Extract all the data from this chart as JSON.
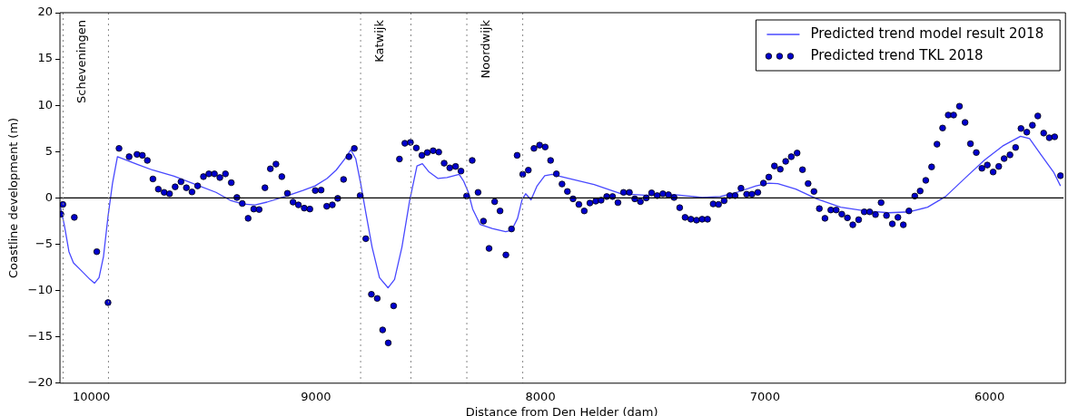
{
  "chart_data": {
    "type": "line",
    "xlabel": "Distance from Den Helder (dam)",
    "ylabel": "Coastline development (m)",
    "xlim": [
      10140,
      5670
    ],
    "ylim": [
      -20,
      20
    ],
    "xticks": [
      10000,
      9000,
      8000,
      7000,
      6000
    ],
    "yticks": [
      -20,
      -15,
      -10,
      -5,
      0,
      5,
      10,
      15,
      20
    ],
    "grid": false,
    "legend": "top right",
    "series": [
      {
        "name": "Predicted trend model result 2018",
        "color": "#4848ff",
        "marker": "none",
        "line_style": "solid",
        "x": [
          10140,
          10120,
          10100,
          10080,
          10047,
          10006,
          9986,
          9966,
          9946,
          9926,
          9906,
          9884,
          9793,
          9726,
          9632,
          9525,
          9445,
          9378,
          9325,
          9271,
          9218,
          9138,
          9058,
          9004,
          8951,
          8910,
          8870,
          8845,
          8823,
          8801,
          8777,
          8750,
          8717,
          8679,
          8650,
          8617,
          8583,
          8550,
          8526,
          8496,
          8456,
          8416,
          8362,
          8342,
          8322,
          8302,
          8269,
          8215,
          8155,
          8129,
          8102,
          8082,
          8066,
          8042,
          8015,
          7981,
          7948,
          7908,
          7761,
          7640,
          7533,
          7400,
          7280,
          7200,
          7120,
          7040,
          6983,
          6943,
          6863,
          6770,
          6663,
          6556,
          6449,
          6356,
          6276,
          6196,
          6102,
          6022,
          5942,
          5862,
          5822,
          5769,
          5715,
          5684
        ],
        "values": [
          -0.7,
          -3.0,
          -5.8,
          -7.0,
          -7.8,
          -8.8,
          -9.2,
          -8.6,
          -6.3,
          -2.0,
          1.6,
          4.45,
          3.6,
          3.0,
          2.35,
          1.35,
          0.6,
          -0.3,
          -0.65,
          -0.75,
          -0.45,
          0.15,
          0.8,
          1.3,
          2.1,
          3.0,
          4.25,
          5.2,
          4.25,
          1.6,
          -1.7,
          -5.3,
          -8.6,
          -9.7,
          -8.8,
          -5.3,
          -0.35,
          3.45,
          3.7,
          2.8,
          2.1,
          2.2,
          2.55,
          1.8,
          0.65,
          -1.2,
          -2.85,
          -3.3,
          -3.65,
          -3.5,
          -2.2,
          -0.2,
          0.45,
          -0.2,
          1.3,
          2.4,
          2.55,
          2.3,
          1.45,
          0.45,
          0.3,
          0.35,
          0.05,
          0.15,
          0.65,
          1.3,
          1.6,
          1.55,
          0.95,
          -0.1,
          -1.0,
          -1.4,
          -1.6,
          -1.5,
          -1.0,
          0.15,
          2.3,
          4.1,
          5.6,
          6.65,
          6.4,
          4.6,
          2.8,
          1.3
        ]
      },
      {
        "name": "Predicted trend TKL 2018",
        "type": "scatter",
        "color": "#0000cc",
        "marker": "circle",
        "x": [
          10136,
          10127,
          10076,
          9976,
          9926,
          9877,
          9832,
          9797,
          9773,
          9751,
          9726,
          9702,
          9676,
          9652,
          9627,
          9601,
          9577,
          9552,
          9527,
          9501,
          9477,
          9452,
          9428,
          9403,
          9377,
          9352,
          9328,
          9302,
          9277,
          9253,
          9227,
          9203,
          9178,
          9152,
          9127,
          9102,
          9078,
          9052,
          9027,
          9003,
          8977,
          8952,
          8927,
          8903,
          8877,
          8853,
          8829,
          8803,
          8778,
          8753,
          8727,
          8703,
          8678,
          8654,
          8628,
          8604,
          8579,
          8553,
          8528,
          8504,
          8478,
          8453,
          8429,
          8404,
          8378,
          8354,
          8329,
          8304,
          8278,
          8254,
          8229,
          8204,
          8180,
          8154,
          8129,
          8104,
          8079,
          8054,
          8029,
          8004,
          7979,
          7955,
          7929,
          7904,
          7880,
          7855,
          7829,
          7805,
          7780,
          7754,
          7730,
          7705,
          7679,
          7655,
          7630,
          7604,
          7580,
          7555,
          7529,
          7505,
          7480,
          7455,
          7430,
          7405,
          7380,
          7356,
          7330,
          7305,
          7280,
          7256,
          7231,
          7207,
          7182,
          7157,
          7133,
          7107,
          7082,
          7058,
          7032,
          7007,
          6983,
          6958,
          6932,
          6908,
          6883,
          6857,
          6833,
          6808,
          6782,
          6758,
          6733,
          6707,
          6683,
          6658,
          6633,
          6609,
          6583,
          6558,
          6534,
          6508,
          6483,
          6459,
          6433,
          6408,
          6384,
          6359,
          6333,
          6309,
          6284,
          6258,
          6234,
          6209,
          6184,
          6160,
          6134,
          6109,
          6085,
          6059,
          6034,
          6010,
          5984,
          5959,
          5935,
          5909,
          5884,
          5860,
          5834,
          5809,
          5785,
          5759,
          5734,
          5710,
          5684
        ],
        "values": [
          -1.75,
          -0.7,
          -2.1,
          -5.8,
          -11.3,
          5.35,
          4.45,
          4.7,
          4.6,
          4.05,
          2.05,
          0.95,
          0.6,
          0.45,
          1.2,
          1.75,
          1.1,
          0.65,
          1.3,
          2.3,
          2.6,
          2.6,
          2.2,
          2.6,
          1.65,
          0.05,
          -0.6,
          -2.2,
          -1.2,
          -1.25,
          1.1,
          3.15,
          3.65,
          2.3,
          0.5,
          -0.45,
          -0.75,
          -1.1,
          -1.2,
          0.8,
          0.85,
          -0.9,
          -0.75,
          -0.05,
          2.0,
          4.45,
          5.35,
          0.25,
          -4.4,
          -10.4,
          -10.85,
          -14.25,
          -15.65,
          -11.65,
          4.2,
          5.9,
          6.0,
          5.4,
          4.6,
          4.9,
          5.1,
          4.95,
          3.75,
          3.25,
          3.4,
          2.9,
          0.2,
          4.05,
          0.6,
          -2.5,
          -5.45,
          -0.4,
          -1.4,
          -6.15,
          -3.35,
          4.6,
          2.55,
          3.0,
          5.35,
          5.7,
          5.5,
          4.05,
          2.6,
          1.5,
          0.7,
          -0.1,
          -0.7,
          -1.4,
          -0.55,
          -0.35,
          -0.25,
          0.15,
          0.15,
          -0.5,
          0.6,
          0.6,
          -0.1,
          -0.4,
          0,
          0.55,
          0.25,
          0.45,
          0.35,
          0.05,
          -1.05,
          -2.1,
          -2.3,
          -2.4,
          -2.3,
          -2.3,
          -0.65,
          -0.7,
          -0.3,
          0.25,
          0.25,
          1.05,
          0.4,
          0.4,
          0.6,
          1.6,
          2.25,
          3.45,
          3.1,
          3.95,
          4.45,
          4.85,
          3.05,
          1.55,
          0.7,
          -1.15,
          -2.2,
          -1.3,
          -1.3,
          -1.75,
          -2.15,
          -2.9,
          -2.35,
          -1.5,
          -1.5,
          -1.8,
          -0.5,
          -1.9,
          -2.8,
          -2.1,
          -2.9,
          -1.4,
          0.2,
          0.75,
          1.9,
          3.35,
          5.8,
          7.55,
          8.95,
          8.95,
          9.9,
          8.15,
          5.85,
          4.9,
          3.2,
          3.55,
          2.8,
          3.4,
          4.25,
          4.65,
          5.45,
          7.5,
          7.1,
          7.85,
          8.85,
          7.0,
          6.5,
          6.6,
          2.4
        ]
      }
    ],
    "ref_lines": [
      {
        "axis": "y",
        "value": 0,
        "color": "#000000",
        "line_style": "solid"
      },
      {
        "axis": "x",
        "value": 10126,
        "label": "Scheveningen",
        "color": "#888888",
        "line_style": "dotted"
      },
      {
        "axis": "x",
        "value": 9924,
        "color": "#888888",
        "line_style": "dotted"
      },
      {
        "axis": "x",
        "value": 8801,
        "label": "Katwijk",
        "color": "#888888",
        "line_style": "dotted"
      },
      {
        "axis": "x",
        "value": 8577,
        "color": "#888888",
        "line_style": "dotted"
      },
      {
        "axis": "x",
        "value": 8328,
        "label": "Noordwijk",
        "color": "#888888",
        "line_style": "dotted"
      },
      {
        "axis": "x",
        "value": 8079,
        "color": "#888888",
        "line_style": "dotted"
      }
    ]
  }
}
